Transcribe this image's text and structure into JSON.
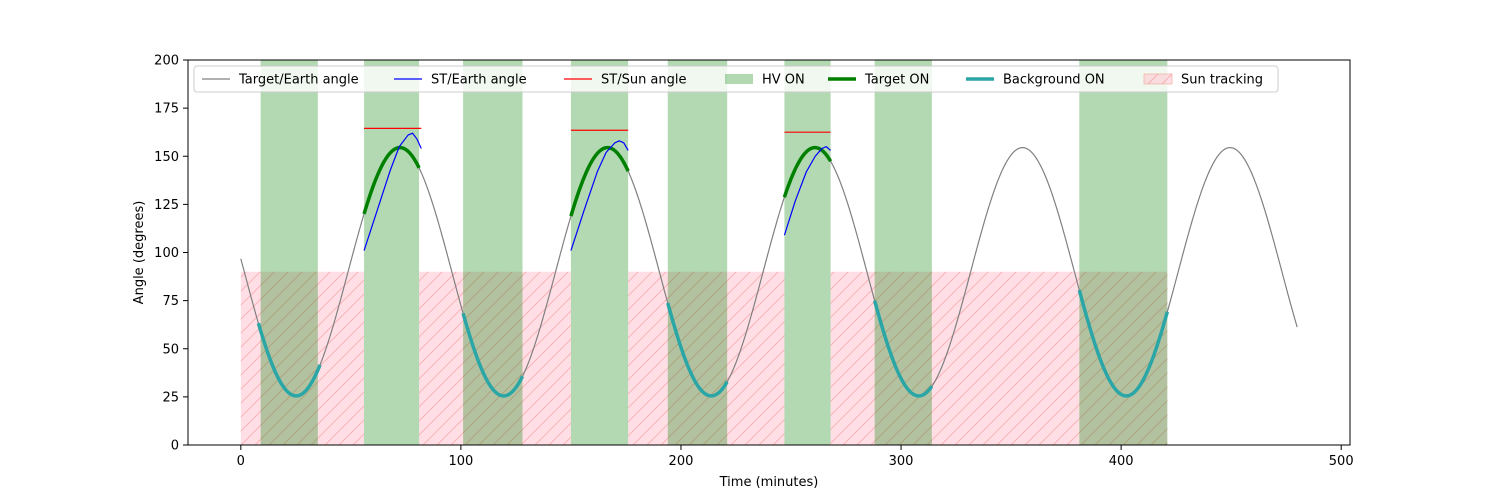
{
  "chart_data": {
    "type": "line",
    "title": "",
    "xlabel": "Time (minutes)",
    "ylabel": "Angle (degrees)",
    "xlim": [
      -24,
      504
    ],
    "ylim": [
      0,
      200
    ],
    "xticks": [
      0,
      100,
      200,
      300,
      400,
      500
    ],
    "yticks": [
      0,
      25,
      50,
      75,
      100,
      125,
      150,
      175,
      200
    ],
    "grid": false,
    "legend_position": "top",
    "colors": {
      "target_earth": "#808080",
      "st_earth": "#0000ff",
      "st_sun": "#ff0000",
      "hv_on": "#b2d9b2",
      "target_on": "#008000",
      "background_on": "#2ba6a6",
      "sun_tracking": "#ffc0cb"
    },
    "legend": [
      {
        "key": "target_earth",
        "label": "Target/Earth angle"
      },
      {
        "key": "st_earth",
        "label": "ST/Earth angle"
      },
      {
        "key": "st_sun",
        "label": "ST/Sun angle"
      },
      {
        "key": "hv_on",
        "label": "HV ON"
      },
      {
        "key": "target_on",
        "label": "Target ON"
      },
      {
        "key": "background_on",
        "label": "Background ON"
      },
      {
        "key": "sun_tracking",
        "label": "Sun tracking"
      }
    ],
    "target_earth_model": {
      "mean": 90,
      "amplitude": 64.5,
      "period_min": 94.3,
      "peak_time_min": 72.3,
      "x_range": [
        0,
        480
      ]
    },
    "hv_on_intervals": [
      [
        9,
        35
      ],
      [
        56,
        81
      ],
      [
        101,
        128
      ],
      [
        150,
        176
      ],
      [
        194,
        221
      ],
      [
        247,
        268
      ],
      [
        288,
        314
      ],
      [
        381,
        421
      ]
    ],
    "target_on_intervals": [
      [
        56,
        81
      ],
      [
        150,
        176
      ],
      [
        247,
        268
      ]
    ],
    "background_on_intervals": [
      [
        8,
        36
      ],
      [
        101,
        128
      ],
      [
        194,
        221
      ],
      [
        288,
        314
      ],
      [
        381,
        421
      ]
    ],
    "sun_tracking": {
      "y_range": [
        0,
        90
      ],
      "intervals": [
        [
          0,
          56
        ],
        [
          81,
          150
        ],
        [
          176,
          247
        ],
        [
          268,
          381
        ],
        [
          381,
          421
        ]
      ]
    },
    "st_sun_segments": [
      {
        "x": [
          56,
          82
        ],
        "y": 164.5
      },
      {
        "x": [
          150,
          176
        ],
        "y": 163.5
      },
      {
        "x": [
          247,
          268
        ],
        "y": 162.5
      }
    ],
    "st_earth_segments": [
      {
        "x": [
          56,
          62,
          68,
          72,
          76,
          78,
          80,
          82
        ],
        "y": [
          101,
          122,
          143,
          155,
          161,
          162,
          159,
          154
        ]
      },
      {
        "x": [
          150,
          156,
          162,
          166,
          170,
          172,
          174,
          176
        ],
        "y": [
          101,
          122,
          142,
          152,
          157,
          158,
          157,
          153
        ]
      },
      {
        "x": [
          247,
          252,
          257,
          261,
          264,
          266,
          268
        ],
        "y": [
          109,
          127,
          142,
          150,
          154,
          155,
          153
        ]
      }
    ]
  }
}
